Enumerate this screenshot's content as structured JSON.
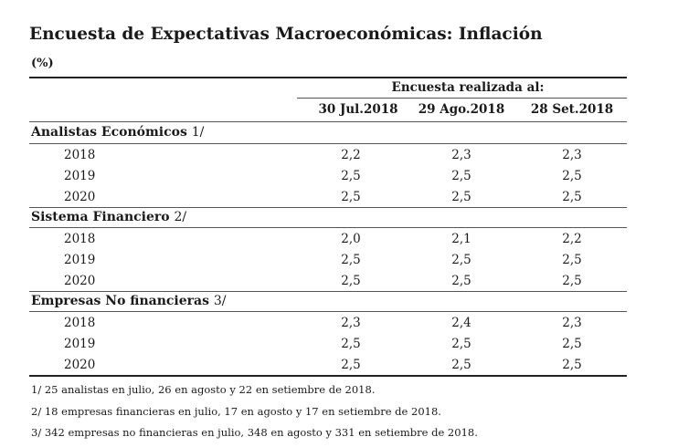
{
  "title": "Encuesta de Expectativas Macroeconómicas: Inflación",
  "unit": "(%)",
  "header": {
    "group_label": "Encuesta realizada al:",
    "columns": [
      "30 Jul.2018",
      "29 Ago.2018",
      "28 Set.2018"
    ]
  },
  "sections": [
    {
      "label": "Analistas Económicos",
      "note": "1/",
      "rows": [
        {
          "year": "2018",
          "values": [
            "2,2",
            "2,3",
            "2,3"
          ]
        },
        {
          "year": "2019",
          "values": [
            "2,5",
            "2,5",
            "2,5"
          ]
        },
        {
          "year": "2020",
          "values": [
            "2,5",
            "2,5",
            "2,5"
          ]
        }
      ]
    },
    {
      "label": "Sistema Financiero",
      "note": "2/",
      "rows": [
        {
          "year": "2018",
          "values": [
            "2,0",
            "2,1",
            "2,2"
          ]
        },
        {
          "year": "2019",
          "values": [
            "2,5",
            "2,5",
            "2,5"
          ]
        },
        {
          "year": "2020",
          "values": [
            "2,5",
            "2,5",
            "2,5"
          ]
        }
      ]
    },
    {
      "label": "Empresas No financieras",
      "note": "3/",
      "rows": [
        {
          "year": "2018",
          "values": [
            "2,3",
            "2,4",
            "2,3"
          ]
        },
        {
          "year": "2019",
          "values": [
            "2,5",
            "2,5",
            "2,5"
          ]
        },
        {
          "year": "2020",
          "values": [
            "2,5",
            "2,5",
            "2,5"
          ]
        }
      ]
    }
  ],
  "footnotes": [
    "1/ 25 analistas en julio, 26 en agosto y 22 en setiembre de 2018.",
    "2/ 18 empresas financieras en julio, 17 en agosto y 17 en setiembre de 2018.",
    "3/ 342 empresas no financieras en julio, 348 en agosto y 331 en setiembre de 2018."
  ]
}
